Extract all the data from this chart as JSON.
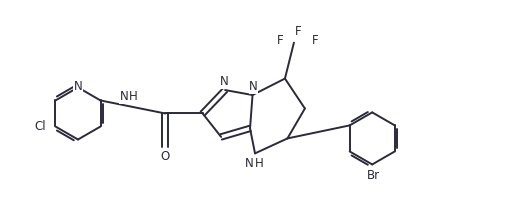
{
  "background_color": "#ffffff",
  "line_color": "#2a2a3a",
  "line_width": 1.4,
  "font_size": 8.5,
  "figsize": [
    5.3,
    2.12
  ],
  "dpi": 100,
  "xlim": [
    0.0,
    10.6
  ],
  "ylim": [
    0.5,
    4.5
  ]
}
